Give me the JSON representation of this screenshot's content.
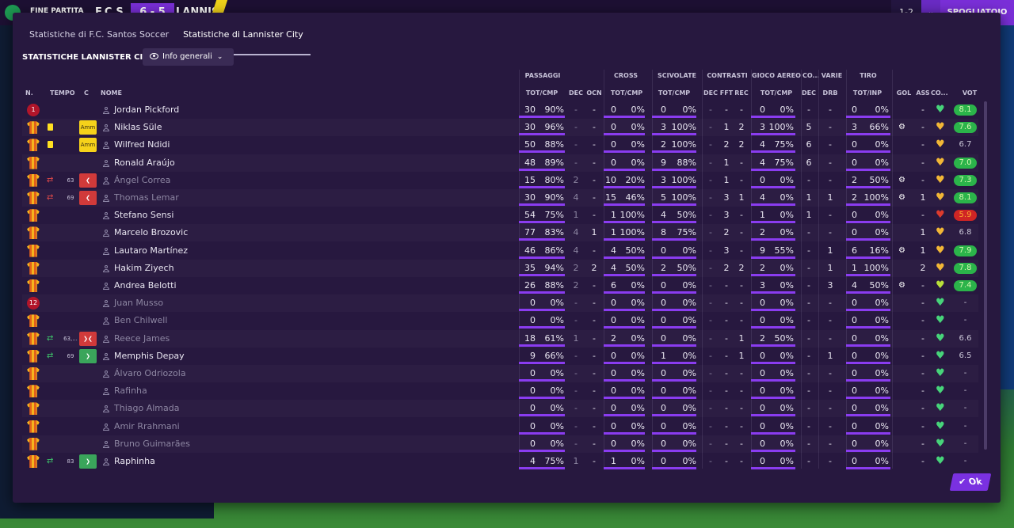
{
  "scoreboard": {
    "status": "FINE PARTITA",
    "home": "F.C.S",
    "score": "6 - 5",
    "away": "LANNIS",
    "right_score": "1-2",
    "right_label": "SPOGLIATOIO"
  },
  "tabs": [
    "Statistiche di F.C. Santos Soccer",
    "Statistiche di Lannister City"
  ],
  "team_title": "STATISTICHE LANNISTER CITY",
  "view_dropdown": "Info generali",
  "groups": [
    "PASSAGGI",
    "CROSS",
    "SCIVOLATE",
    "CONTRASTI",
    "GIOCO AEREO",
    "CO...",
    "VARIE",
    "TIRO"
  ],
  "columns": [
    "N.",
    "TEMPO",
    "C",
    "NOME",
    "TOT/CMP",
    "DEC",
    "OCN",
    "TOT/CMP",
    "TOT/CMP",
    "DEC",
    "FFT",
    "REC",
    "TOT/CMP",
    "DEC",
    "DRB",
    "TOT/INP",
    "GOL",
    "ASS",
    "CO...",
    "VOT"
  ],
  "ok_label": "Ok",
  "players": [
    {
      "kit": "gk",
      "num": "1",
      "name": "Jordan Pickford",
      "pass": [
        "30",
        "90%"
      ],
      "pdec": "-",
      "pocn": "-",
      "cross": [
        "0",
        "0%"
      ],
      "sciv": [
        "0",
        "0%"
      ],
      "cdec": "-",
      "cfft": "-",
      "crec": "-",
      "aereo": [
        "0",
        "0%"
      ],
      "co": "-",
      "drb": "-",
      "tiro": [
        "0",
        "0%"
      ],
      "gol": "",
      "ass": "-",
      "heart": "green",
      "vot": "8.1",
      "vcls": "green"
    },
    {
      "kit": "s",
      "yc": true,
      "badge": "Amm",
      "name": "Niklas Süle",
      "pass": [
        "30",
        "96%"
      ],
      "pdec": "-",
      "pocn": "-",
      "cross": [
        "0",
        "0%"
      ],
      "sciv": [
        "3",
        "100%"
      ],
      "cdec": "-",
      "cfft": "1",
      "crec": "2",
      "aereo": [
        "3",
        "100%"
      ],
      "co": "5",
      "drb": "-",
      "tiro": [
        "3",
        "66%"
      ],
      "gol": "cog",
      "ass": "-",
      "heart": "gold",
      "vot": "7.6",
      "vcls": "green"
    },
    {
      "kit": "s",
      "yc": true,
      "badge": "Amm",
      "name": "Wilfred Ndidi",
      "pass": [
        "50",
        "88%"
      ],
      "pdec": "-",
      "pocn": "-",
      "cross": [
        "0",
        "0%"
      ],
      "sciv": [
        "2",
        "100%"
      ],
      "cdec": "-",
      "cfft": "2",
      "crec": "2",
      "aereo": [
        "4",
        "75%"
      ],
      "co": "6",
      "drb": "-",
      "tiro": [
        "0",
        "0%"
      ],
      "gol": "",
      "ass": "-",
      "heart": "gold",
      "vot": "6.7",
      "vcls": "plain"
    },
    {
      "kit": "s",
      "name": "Ronald Araújo",
      "pass": [
        "48",
        "89%"
      ],
      "pdec": "-",
      "pocn": "-",
      "cross": [
        "0",
        "0%"
      ],
      "sciv": [
        "9",
        "88%"
      ],
      "cdec": "-",
      "cfft": "1",
      "crec": "-",
      "aereo": [
        "4",
        "75%"
      ],
      "co": "6",
      "drb": "-",
      "tiro": [
        "0",
        "0%"
      ],
      "gol": "",
      "ass": "-",
      "heart": "gold",
      "vot": "7.0",
      "vcls": "green"
    },
    {
      "kit": "s",
      "sub": "out",
      "min": "63",
      "badge": "out",
      "name": "Ángel Correa",
      "dimname": true,
      "pass": [
        "15",
        "80%"
      ],
      "pdec": "2",
      "pocn": "-",
      "cross": [
        "10",
        "20%"
      ],
      "sciv": [
        "3",
        "100%"
      ],
      "cdec": "-",
      "cfft": "1",
      "crec": "-",
      "aereo": [
        "0",
        "0%"
      ],
      "co": "-",
      "drb": "-",
      "tiro": [
        "2",
        "50%"
      ],
      "gol": "cog",
      "ass": "-",
      "heart": "gold",
      "vot": "7.3",
      "vcls": "green"
    },
    {
      "kit": "s",
      "sub": "out",
      "min": "69",
      "badge": "out",
      "name": "Thomas Lemar",
      "dimname": true,
      "pass": [
        "30",
        "90%"
      ],
      "pdec": "4",
      "pocn": "-",
      "cross": [
        "15",
        "46%"
      ],
      "sciv": [
        "5",
        "100%"
      ],
      "cdec": "-",
      "cfft": "3",
      "crec": "1",
      "aereo": [
        "4",
        "0%"
      ],
      "co": "1",
      "drb": "1",
      "tiro": [
        "2",
        "100%"
      ],
      "gol": "cog",
      "ass": "1",
      "heart": "gold",
      "vot": "8.1",
      "vcls": "green"
    },
    {
      "kit": "s",
      "name": "Stefano Sensi",
      "pass": [
        "54",
        "75%"
      ],
      "pdec": "1",
      "pocn": "-",
      "cross": [
        "1",
        "100%"
      ],
      "sciv": [
        "4",
        "50%"
      ],
      "cdec": "-",
      "cfft": "3",
      "crec": "-",
      "aereo": [
        "1",
        "0%"
      ],
      "co": "1",
      "drb": "-",
      "tiro": [
        "0",
        "0%"
      ],
      "gol": "",
      "ass": "-",
      "heart": "red",
      "vot": "5.9",
      "vcls": "red"
    },
    {
      "kit": "s",
      "name": "Marcelo Brozovic",
      "pass": [
        "77",
        "83%"
      ],
      "pdec": "4",
      "pocn": "1",
      "cross": [
        "1",
        "100%"
      ],
      "sciv": [
        "8",
        "75%"
      ],
      "cdec": "-",
      "cfft": "2",
      "crec": "-",
      "aereo": [
        "2",
        "0%"
      ],
      "co": "-",
      "drb": "-",
      "tiro": [
        "0",
        "0%"
      ],
      "gol": "",
      "ass": "1",
      "heart": "gold",
      "vot": "6.8",
      "vcls": "plain"
    },
    {
      "kit": "s",
      "name": "Lautaro Martínez",
      "pass": [
        "46",
        "86%"
      ],
      "pdec": "4",
      "pocn": "-",
      "cross": [
        "4",
        "50%"
      ],
      "sciv": [
        "0",
        "0%"
      ],
      "cdec": "-",
      "cfft": "3",
      "crec": "-",
      "aereo": [
        "9",
        "55%"
      ],
      "co": "-",
      "drb": "1",
      "tiro": [
        "6",
        "16%"
      ],
      "gol": "cog",
      "ass": "1",
      "heart": "gold",
      "vot": "7.9",
      "vcls": "green"
    },
    {
      "kit": "s",
      "name": "Hakim Ziyech",
      "pass": [
        "35",
        "94%"
      ],
      "pdec": "2",
      "pocn": "2",
      "cross": [
        "4",
        "50%"
      ],
      "sciv": [
        "2",
        "50%"
      ],
      "cdec": "-",
      "cfft": "2",
      "crec": "2",
      "aereo": [
        "2",
        "0%"
      ],
      "co": "-",
      "drb": "1",
      "tiro": [
        "1",
        "100%"
      ],
      "gol": "",
      "ass": "2",
      "heart": "gold",
      "vot": "7.8",
      "vcls": "green"
    },
    {
      "kit": "s",
      "name": "Andrea Belotti",
      "pass": [
        "26",
        "88%"
      ],
      "pdec": "2",
      "pocn": "-",
      "cross": [
        "6",
        "0%"
      ],
      "sciv": [
        "0",
        "0%"
      ],
      "cdec": "-",
      "cfft": "-",
      "crec": "-",
      "aereo": [
        "3",
        "0%"
      ],
      "co": "-",
      "drb": "3",
      "tiro": [
        "4",
        "50%"
      ],
      "gol": "cog",
      "ass": "-",
      "heart": "lime",
      "vot": "7.4",
      "vcls": "green"
    },
    {
      "kit": "gk",
      "num": "12",
      "name": "Juan Musso",
      "dimname": true,
      "pass": [
        "0",
        "0%"
      ],
      "pdec": "-",
      "pocn": "-",
      "cross": [
        "0",
        "0%"
      ],
      "sciv": [
        "0",
        "0%"
      ],
      "cdec": "-",
      "cfft": "-",
      "crec": "-",
      "aereo": [
        "0",
        "0%"
      ],
      "co": "-",
      "drb": "-",
      "tiro": [
        "0",
        "0%"
      ],
      "gol": "",
      "ass": "-",
      "heart": "green",
      "vot": "-",
      "vcls": "plain"
    },
    {
      "kit": "s",
      "name": "Ben Chilwell",
      "dimname": true,
      "pass": [
        "0",
        "0%"
      ],
      "pdec": "-",
      "pocn": "-",
      "cross": [
        "0",
        "0%"
      ],
      "sciv": [
        "0",
        "0%"
      ],
      "cdec": "-",
      "cfft": "-",
      "crec": "-",
      "aereo": [
        "0",
        "0%"
      ],
      "co": "-",
      "drb": "-",
      "tiro": [
        "0",
        "0%"
      ],
      "gol": "",
      "ass": "-",
      "heart": "green",
      "vot": "-",
      "vcls": "plain"
    },
    {
      "kit": "s",
      "sub": "both",
      "min": "63,...",
      "badge": "both",
      "name": "Reece James",
      "dimname": true,
      "pass": [
        "18",
        "61%"
      ],
      "pdec": "1",
      "pocn": "-",
      "cross": [
        "2",
        "0%"
      ],
      "sciv": [
        "0",
        "0%"
      ],
      "cdec": "-",
      "cfft": "-",
      "crec": "1",
      "aereo": [
        "2",
        "50%"
      ],
      "co": "-",
      "drb": "-",
      "tiro": [
        "0",
        "0%"
      ],
      "gol": "",
      "ass": "-",
      "heart": "green",
      "vot": "6.6",
      "vcls": "plain"
    },
    {
      "kit": "s",
      "sub": "in",
      "min": "69",
      "badge": "in",
      "name": "Memphis Depay",
      "pass": [
        "9",
        "66%"
      ],
      "pdec": "-",
      "pocn": "-",
      "cross": [
        "0",
        "0%"
      ],
      "sciv": [
        "1",
        "0%"
      ],
      "cdec": "-",
      "cfft": "-",
      "crec": "1",
      "aereo": [
        "0",
        "0%"
      ],
      "co": "-",
      "drb": "1",
      "tiro": [
        "0",
        "0%"
      ],
      "gol": "",
      "ass": "-",
      "heart": "green",
      "vot": "6.5",
      "vcls": "plain"
    },
    {
      "kit": "s",
      "name": "Álvaro Odriozola",
      "dimname": true,
      "pass": [
        "0",
        "0%"
      ],
      "pdec": "-",
      "pocn": "-",
      "cross": [
        "0",
        "0%"
      ],
      "sciv": [
        "0",
        "0%"
      ],
      "cdec": "-",
      "cfft": "-",
      "crec": "-",
      "aereo": [
        "0",
        "0%"
      ],
      "co": "-",
      "drb": "-",
      "tiro": [
        "0",
        "0%"
      ],
      "gol": "",
      "ass": "-",
      "heart": "green",
      "vot": "-",
      "vcls": "plain"
    },
    {
      "kit": "s",
      "name": "Rafinha",
      "dimname": true,
      "pass": [
        "0",
        "0%"
      ],
      "pdec": "-",
      "pocn": "-",
      "cross": [
        "0",
        "0%"
      ],
      "sciv": [
        "0",
        "0%"
      ],
      "cdec": "-",
      "cfft": "-",
      "crec": "-",
      "aereo": [
        "0",
        "0%"
      ],
      "co": "-",
      "drb": "-",
      "tiro": [
        "0",
        "0%"
      ],
      "gol": "",
      "ass": "-",
      "heart": "green",
      "vot": "-",
      "vcls": "plain"
    },
    {
      "kit": "s",
      "name": "Thiago Almada",
      "dimname": true,
      "pass": [
        "0",
        "0%"
      ],
      "pdec": "-",
      "pocn": "-",
      "cross": [
        "0",
        "0%"
      ],
      "sciv": [
        "0",
        "0%"
      ],
      "cdec": "-",
      "cfft": "-",
      "crec": "-",
      "aereo": [
        "0",
        "0%"
      ],
      "co": "-",
      "drb": "-",
      "tiro": [
        "0",
        "0%"
      ],
      "gol": "",
      "ass": "-",
      "heart": "green",
      "vot": "-",
      "vcls": "plain"
    },
    {
      "kit": "s",
      "name": "Amir Rrahmani",
      "dimname": true,
      "pass": [
        "0",
        "0%"
      ],
      "pdec": "-",
      "pocn": "-",
      "cross": [
        "0",
        "0%"
      ],
      "sciv": [
        "0",
        "0%"
      ],
      "cdec": "-",
      "cfft": "-",
      "crec": "-",
      "aereo": [
        "0",
        "0%"
      ],
      "co": "-",
      "drb": "-",
      "tiro": [
        "0",
        "0%"
      ],
      "gol": "",
      "ass": "-",
      "heart": "green",
      "vot": "-",
      "vcls": "plain"
    },
    {
      "kit": "s",
      "name": "Bruno Guimarães",
      "dimname": true,
      "pass": [
        "0",
        "0%"
      ],
      "pdec": "-",
      "pocn": "-",
      "cross": [
        "0",
        "0%"
      ],
      "sciv": [
        "0",
        "0%"
      ],
      "cdec": "-",
      "cfft": "-",
      "crec": "-",
      "aereo": [
        "0",
        "0%"
      ],
      "co": "-",
      "drb": "-",
      "tiro": [
        "0",
        "0%"
      ],
      "gol": "",
      "ass": "-",
      "heart": "green",
      "vot": "-",
      "vcls": "plain"
    },
    {
      "kit": "s",
      "sub": "in",
      "min": "83",
      "badge": "in",
      "name": "Raphinha",
      "pass": [
        "4",
        "75%"
      ],
      "pdec": "1",
      "pocn": "-",
      "cross": [
        "1",
        "0%"
      ],
      "sciv": [
        "0",
        "0%"
      ],
      "cdec": "-",
      "cfft": "-",
      "crec": "-",
      "aereo": [
        "0",
        "0%"
      ],
      "co": "-",
      "drb": "-",
      "tiro": [
        "0",
        "0%"
      ],
      "gol": "",
      "ass": "-",
      "heart": "green",
      "vot": "-",
      "vcls": "plain"
    }
  ]
}
